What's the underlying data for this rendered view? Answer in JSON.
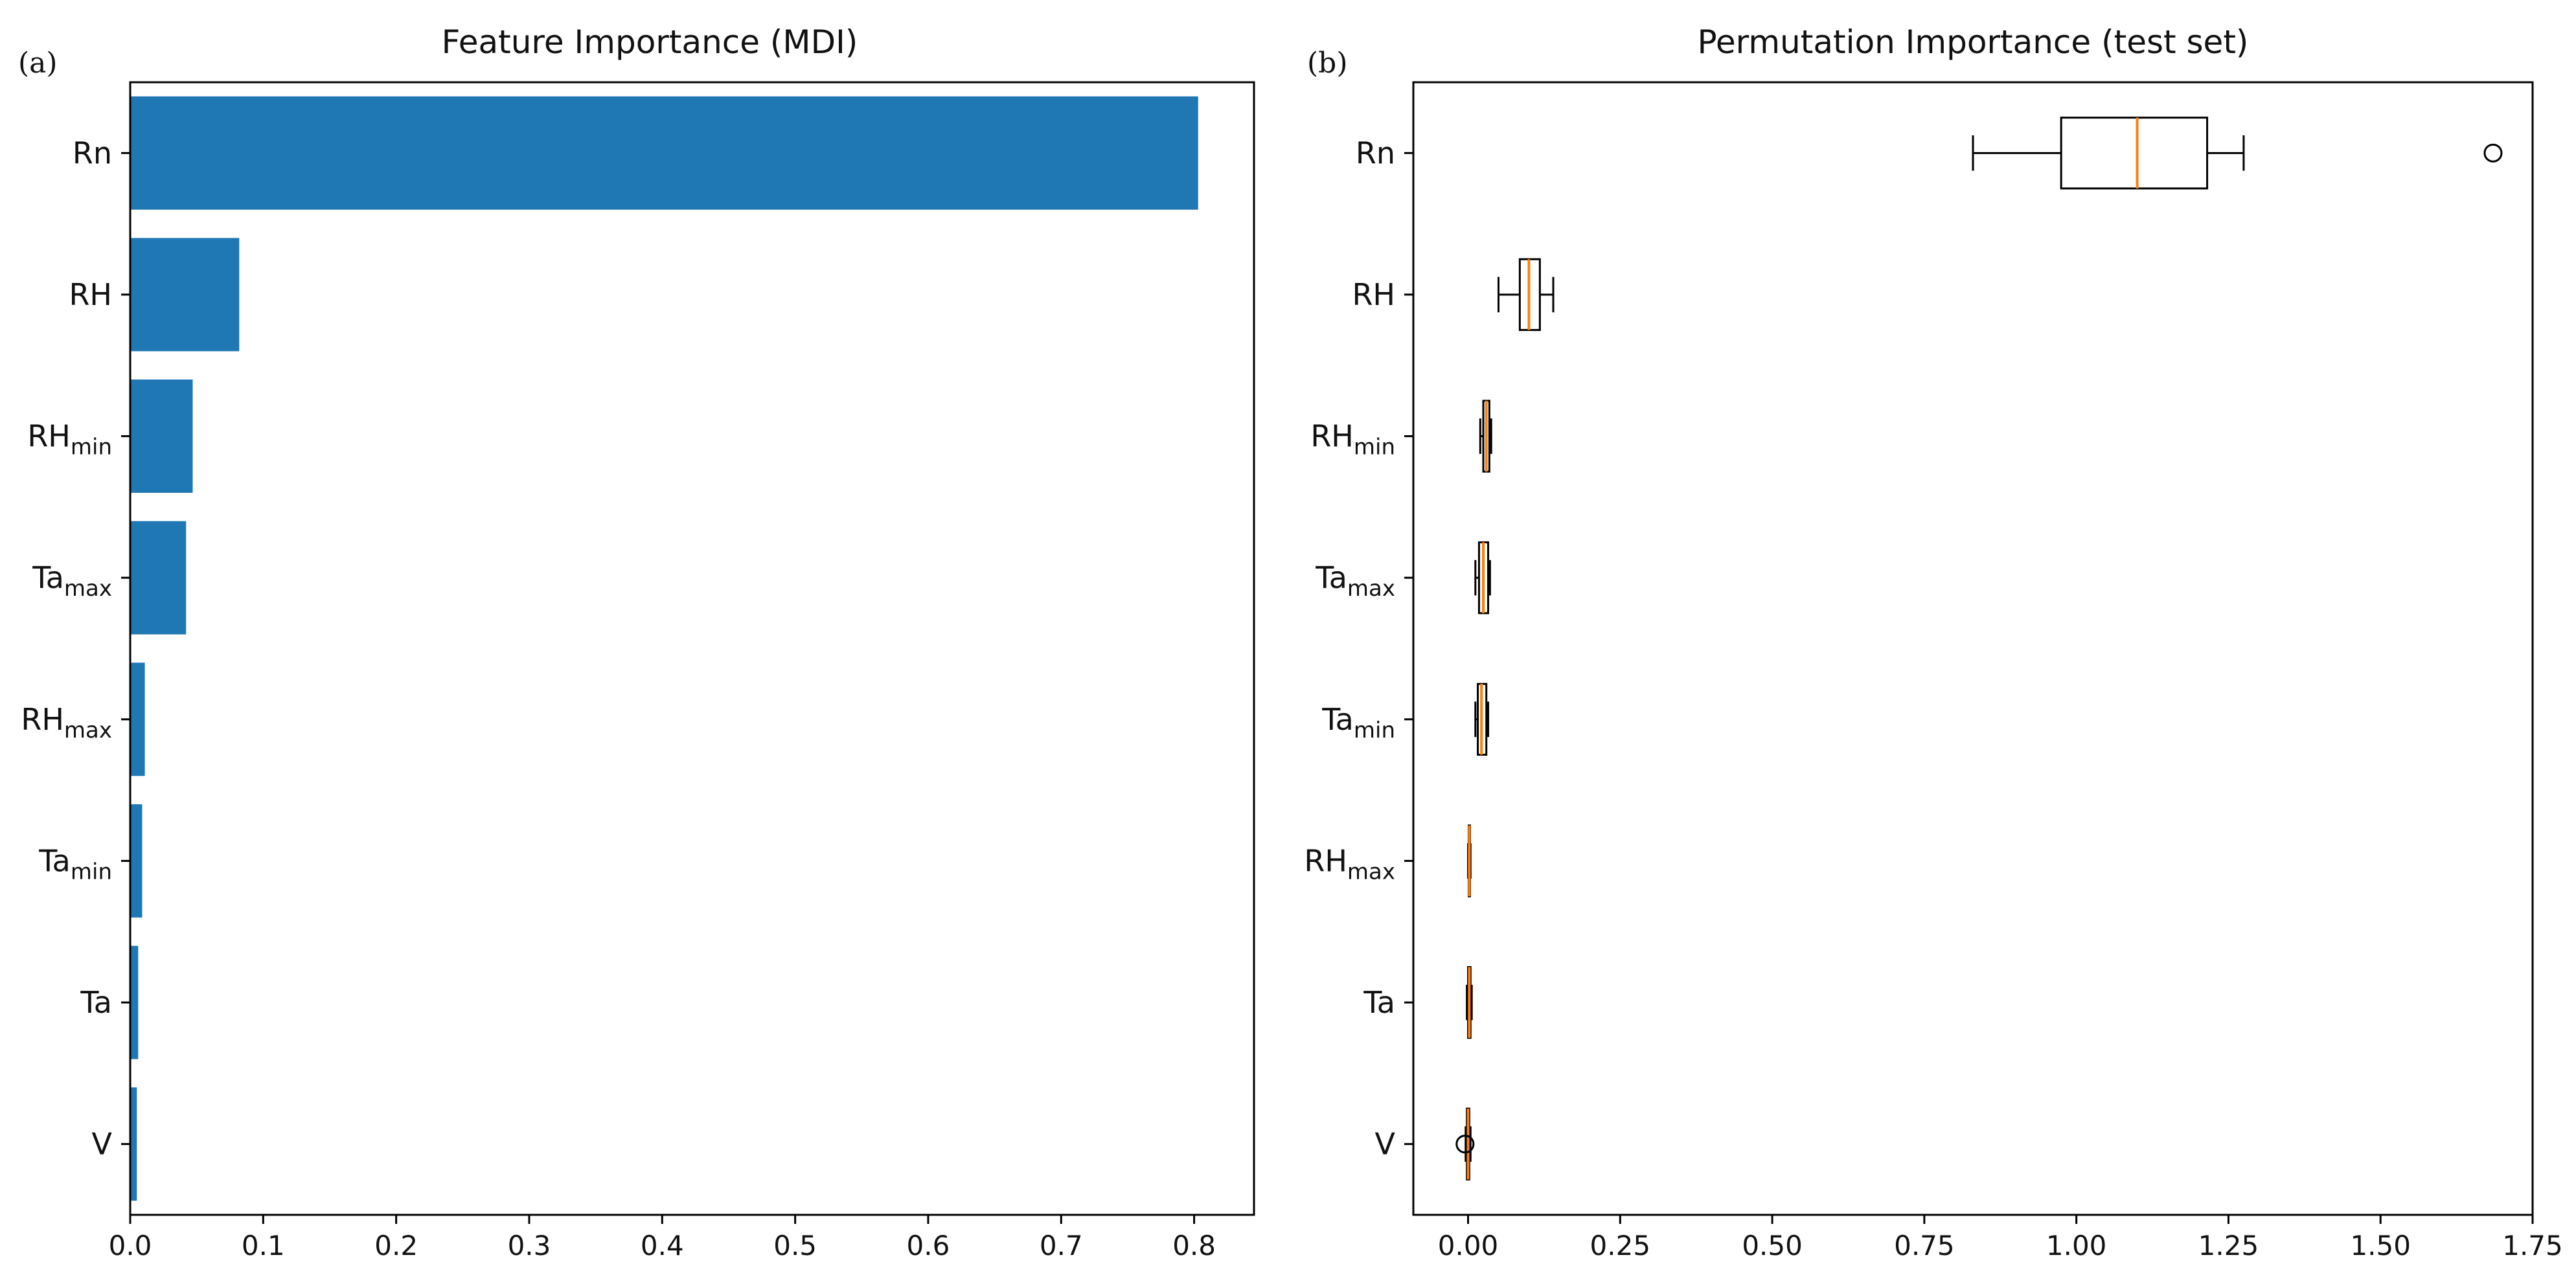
{
  "chart_data": [
    {
      "type": "bar",
      "orientation": "horizontal",
      "panel_label": "(a)",
      "title": "Feature Importance (MDI)",
      "categories": [
        {
          "base": "Rn",
          "sub": ""
        },
        {
          "base": "RH",
          "sub": ""
        },
        {
          "base": "RH",
          "sub": "min"
        },
        {
          "base": "Ta",
          "sub": "max"
        },
        {
          "base": "RH",
          "sub": "max"
        },
        {
          "base": "Ta",
          "sub": "min"
        },
        {
          "base": "Ta",
          "sub": ""
        },
        {
          "base": "V",
          "sub": ""
        }
      ],
      "values": [
        0.803,
        0.082,
        0.047,
        0.042,
        0.011,
        0.009,
        0.006,
        0.005
      ],
      "xlim": [
        0.0,
        0.845
      ],
      "xticks": [
        0.0,
        0.1,
        0.2,
        0.3,
        0.4,
        0.5,
        0.6,
        0.7,
        0.8
      ],
      "xtick_labels": [
        "0.0",
        "0.1",
        "0.2",
        "0.3",
        "0.4",
        "0.5",
        "0.6",
        "0.7",
        "0.8"
      ],
      "bar_color": "#1f77b4",
      "xlabel": "",
      "ylabel": ""
    },
    {
      "type": "box",
      "orientation": "horizontal",
      "panel_label": "(b)",
      "title": "Permutation Importance (test set)",
      "categories": [
        {
          "base": "Rn",
          "sub": ""
        },
        {
          "base": "RH",
          "sub": ""
        },
        {
          "base": "RH",
          "sub": "min"
        },
        {
          "base": "Ta",
          "sub": "max"
        },
        {
          "base": "Ta",
          "sub": "min"
        },
        {
          "base": "RH",
          "sub": "max"
        },
        {
          "base": "Ta",
          "sub": ""
        },
        {
          "base": "V",
          "sub": ""
        }
      ],
      "boxes": [
        {
          "whislo": 0.83,
          "q1": 0.975,
          "med": 1.1,
          "q3": 1.215,
          "whishi": 1.275,
          "fliers": [
            1.685
          ]
        },
        {
          "whislo": 0.05,
          "q1": 0.085,
          "med": 0.1,
          "q3": 0.118,
          "whishi": 0.14,
          "fliers": []
        },
        {
          "whislo": 0.02,
          "q1": 0.025,
          "med": 0.03,
          "q3": 0.035,
          "whishi": 0.038,
          "fliers": []
        },
        {
          "whislo": 0.012,
          "q1": 0.018,
          "med": 0.025,
          "q3": 0.033,
          "whishi": 0.036,
          "fliers": []
        },
        {
          "whislo": 0.012,
          "q1": 0.016,
          "med": 0.022,
          "q3": 0.03,
          "whishi": 0.033,
          "fliers": []
        },
        {
          "whislo": 0.0,
          "q1": 0.001,
          "med": 0.002,
          "q3": 0.003,
          "whishi": 0.004,
          "fliers": []
        },
        {
          "whislo": -0.002,
          "q1": 0.0,
          "med": 0.002,
          "q3": 0.004,
          "whishi": 0.006,
          "fliers": []
        },
        {
          "whislo": -0.004,
          "q1": -0.002,
          "med": 0.0,
          "q3": 0.002,
          "whishi": 0.004,
          "fliers": [
            -0.005
          ]
        }
      ],
      "xlim": [
        -0.09,
        1.75
      ],
      "xticks": [
        0.0,
        0.25,
        0.5,
        0.75,
        1.0,
        1.25,
        1.5,
        1.75
      ],
      "xtick_labels": [
        "0.00",
        "0.25",
        "0.50",
        "0.75",
        "1.00",
        "1.25",
        "1.50",
        "1.75"
      ],
      "median_color": "#ff7f0e",
      "xlabel": "",
      "ylabel": ""
    }
  ]
}
